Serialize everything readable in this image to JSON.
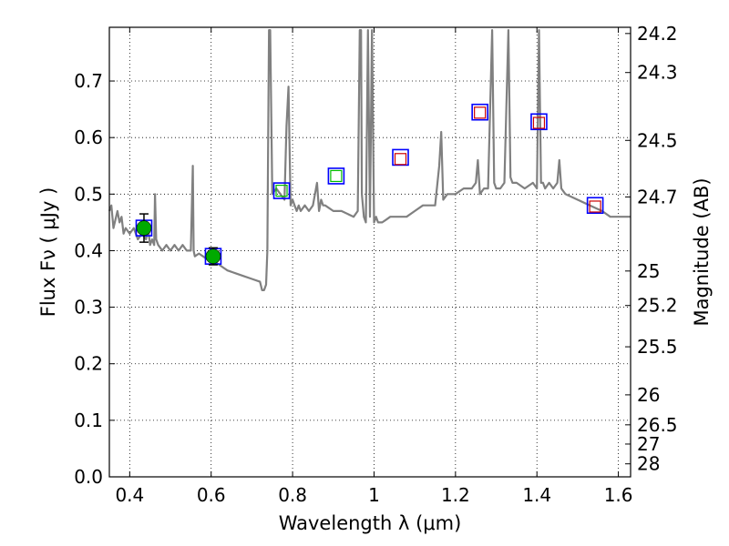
{
  "chart_data": {
    "type": "line",
    "xlabel": "Wavelength  λ (μm)",
    "ylabel": "Flux  Fν  ( μJy )",
    "y2label": "Magnitude (AB)",
    "xlim": [
      0.35,
      1.63
    ],
    "ylim": [
      0.0,
      0.795
    ],
    "grid": true,
    "x_ticks": [
      0.4,
      0.6,
      0.8,
      1.0,
      1.2,
      1.4,
      1.6
    ],
    "x_tick_labels": [
      "0.4",
      "0.6",
      "0.8",
      "1",
      "1.2",
      "1.4",
      "1.6"
    ],
    "y_ticks": [
      0.0,
      0.1,
      0.2,
      0.3,
      0.4,
      0.5,
      0.6,
      0.7
    ],
    "y_tick_labels": [
      "0.0",
      "0.1",
      "0.2",
      "0.3",
      "0.4",
      "0.5",
      "0.6",
      "0.7"
    ],
    "y2_ticks": [
      {
        "label": "24.2",
        "flux": 0.784
      },
      {
        "label": "24.3",
        "flux": 0.715
      },
      {
        "label": "24.5",
        "flux": 0.595
      },
      {
        "label": "24.7",
        "flux": 0.495
      },
      {
        "label": "25",
        "flux": 0.364
      },
      {
        "label": "25.2",
        "flux": 0.303
      },
      {
        "label": "25.5",
        "flux": 0.23
      },
      {
        "label": "26",
        "flux": 0.145
      },
      {
        "label": "26.5",
        "flux": 0.092
      },
      {
        "label": "27",
        "flux": 0.058
      },
      {
        "label": "28",
        "flux": 0.023
      }
    ],
    "series": [
      {
        "kind": "model-spectrum",
        "color": "#808080",
        "x": [
          0.35,
          0.355,
          0.36,
          0.37,
          0.375,
          0.38,
          0.385,
          0.39,
          0.4,
          0.41,
          0.42,
          0.43,
          0.44,
          0.445,
          0.45,
          0.455,
          0.46,
          0.462,
          0.465,
          0.47,
          0.48,
          0.49,
          0.5,
          0.51,
          0.52,
          0.53,
          0.54,
          0.55,
          0.555,
          0.557,
          0.56,
          0.57,
          0.58,
          0.59,
          0.6,
          0.61,
          0.62,
          0.63,
          0.64,
          0.66,
          0.68,
          0.7,
          0.72,
          0.725,
          0.73,
          0.735,
          0.738,
          0.74,
          0.742,
          0.745,
          0.75,
          0.76,
          0.77,
          0.78,
          0.785,
          0.79,
          0.795,
          0.8,
          0.805,
          0.81,
          0.815,
          0.82,
          0.83,
          0.84,
          0.85,
          0.86,
          0.865,
          0.87,
          0.875,
          0.88,
          0.9,
          0.92,
          0.95,
          0.96,
          0.965,
          0.968,
          0.97,
          0.975,
          0.98,
          0.985,
          0.99,
          0.995,
          1.0,
          1.005,
          1.01,
          1.02,
          1.03,
          1.04,
          1.06,
          1.08,
          1.1,
          1.12,
          1.14,
          1.15,
          1.16,
          1.165,
          1.17,
          1.18,
          1.2,
          1.22,
          1.24,
          1.25,
          1.255,
          1.26,
          1.27,
          1.28,
          1.29,
          1.295,
          1.3,
          1.31,
          1.32,
          1.33,
          1.335,
          1.34,
          1.35,
          1.37,
          1.39,
          1.4,
          1.405,
          1.41,
          1.415,
          1.42,
          1.43,
          1.44,
          1.45,
          1.455,
          1.46,
          1.47,
          1.5,
          1.53,
          1.56,
          1.58,
          1.6,
          1.63
        ],
        "y": [
          0.47,
          0.48,
          0.44,
          0.47,
          0.45,
          0.46,
          0.43,
          0.44,
          0.43,
          0.44,
          0.42,
          0.43,
          0.42,
          0.44,
          0.41,
          0.42,
          0.41,
          0.5,
          0.42,
          0.41,
          0.4,
          0.41,
          0.4,
          0.41,
          0.4,
          0.41,
          0.4,
          0.4,
          0.55,
          0.4,
          0.39,
          0.395,
          0.39,
          0.385,
          0.38,
          0.38,
          0.375,
          0.37,
          0.365,
          0.36,
          0.355,
          0.35,
          0.345,
          0.33,
          0.33,
          0.34,
          0.4,
          0.6,
          0.79,
          0.79,
          0.5,
          0.51,
          0.5,
          0.49,
          0.62,
          0.69,
          0.48,
          0.49,
          0.48,
          0.47,
          0.48,
          0.47,
          0.48,
          0.47,
          0.48,
          0.52,
          0.47,
          0.49,
          0.48,
          0.48,
          0.47,
          0.47,
          0.46,
          0.47,
          0.79,
          0.79,
          0.5,
          0.46,
          0.45,
          0.79,
          0.46,
          0.79,
          0.45,
          0.46,
          0.45,
          0.45,
          0.455,
          0.46,
          0.46,
          0.46,
          0.47,
          0.48,
          0.48,
          0.48,
          0.55,
          0.61,
          0.49,
          0.5,
          0.5,
          0.51,
          0.51,
          0.52,
          0.56,
          0.5,
          0.51,
          0.51,
          0.79,
          0.52,
          0.51,
          0.51,
          0.52,
          0.79,
          0.53,
          0.52,
          0.52,
          0.51,
          0.52,
          0.51,
          0.79,
          0.52,
          0.52,
          0.51,
          0.52,
          0.51,
          0.52,
          0.56,
          0.51,
          0.5,
          0.49,
          0.48,
          0.47,
          0.46,
          0.46,
          0.46
        ]
      },
      {
        "kind": "model-photometry",
        "marker": "open-square",
        "color": "#0000ff",
        "x": [
          0.435,
          0.605,
          0.773,
          0.907,
          1.065,
          1.26,
          1.405,
          1.543
        ],
        "y": [
          0.44,
          0.39,
          0.506,
          0.532,
          0.565,
          0.645,
          0.628,
          0.48
        ]
      },
      {
        "kind": "observed-photometry",
        "marker": "filled-circle",
        "color": "#00aa00",
        "x": [
          0.435,
          0.605
        ],
        "y": [
          0.44,
          0.39
        ],
        "yerr": [
          0.025,
          0.015
        ]
      },
      {
        "kind": "observed-upper",
        "marker": "open-square",
        "color": "#00bb00",
        "x": [
          0.773,
          0.907
        ],
        "y": [
          0.506,
          0.532
        ]
      },
      {
        "kind": "observed-upper",
        "marker": "open-square",
        "color": "#cc0000",
        "x": [
          1.065,
          1.26,
          1.405,
          1.543
        ],
        "y": [
          0.562,
          0.644,
          0.626,
          0.478
        ]
      }
    ]
  }
}
